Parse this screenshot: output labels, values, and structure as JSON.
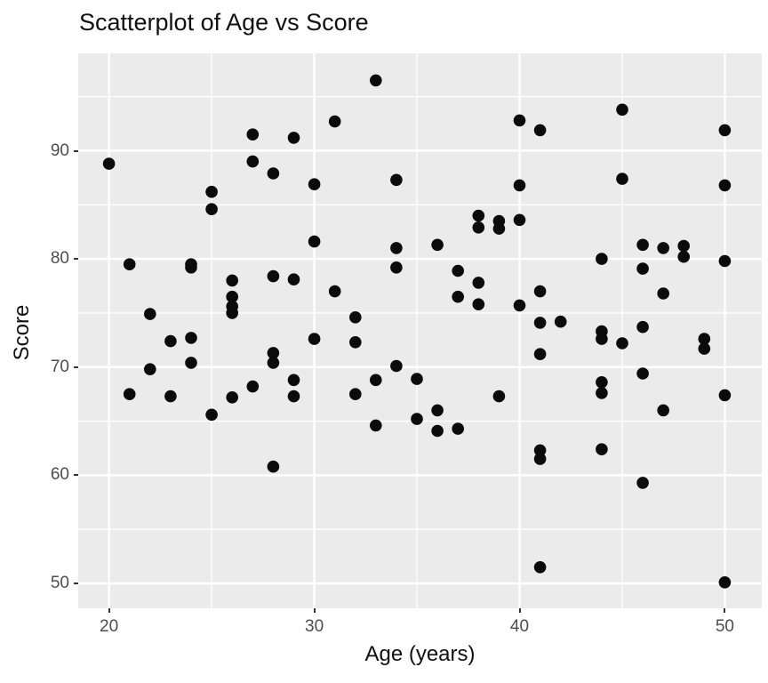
{
  "chart_data": {
    "type": "scatter",
    "title": "Scatterplot of Age vs Score",
    "xlabel": "Age (years)",
    "ylabel": "Score",
    "xlim": [
      18.5,
      51.8
    ],
    "ylim": [
      47.7,
      99.0
    ],
    "xticks": [
      20,
      30,
      40,
      50
    ],
    "yticks": [
      50,
      60,
      70,
      80,
      90
    ],
    "x_minor_gridlines": [
      25,
      35,
      45
    ],
    "y_minor_gridlines": [
      55,
      65,
      75,
      85,
      95
    ],
    "grid": "on",
    "legend_position": "none",
    "panel_bg": "#EBEBEB",
    "grid_color": "#FFFFFF",
    "point_color": "#0B0B0B",
    "tick_text_color": "#4D4D4D",
    "points": [
      [
        20,
        88.8
      ],
      [
        21,
        79.5
      ],
      [
        21,
        67.5
      ],
      [
        22,
        74.9
      ],
      [
        22,
        69.8
      ],
      [
        23,
        72.4
      ],
      [
        23,
        67.3
      ],
      [
        24,
        79.5
      ],
      [
        24,
        79.2
      ],
      [
        24,
        72.7
      ],
      [
        24,
        70.4
      ],
      [
        25,
        86.2
      ],
      [
        25,
        84.6
      ],
      [
        25,
        65.6
      ],
      [
        26,
        78.0
      ],
      [
        26,
        76.5
      ],
      [
        26,
        75.6
      ],
      [
        26,
        75.0
      ],
      [
        26,
        67.2
      ],
      [
        27,
        91.5
      ],
      [
        27,
        89.0
      ],
      [
        27,
        68.2
      ],
      [
        28,
        87.9
      ],
      [
        28,
        78.4
      ],
      [
        28,
        71.3
      ],
      [
        28,
        70.4
      ],
      [
        28,
        60.8
      ],
      [
        29,
        91.2
      ],
      [
        29,
        78.1
      ],
      [
        29,
        68.8
      ],
      [
        29,
        67.3
      ],
      [
        30,
        86.9
      ],
      [
        30,
        81.6
      ],
      [
        30,
        72.6
      ],
      [
        31,
        92.7
      ],
      [
        31,
        77.0
      ],
      [
        32,
        74.6
      ],
      [
        32,
        72.3
      ],
      [
        32,
        67.5
      ],
      [
        33,
        96.5
      ],
      [
        33,
        68.8
      ],
      [
        33,
        64.6
      ],
      [
        34,
        87.3
      ],
      [
        34,
        81.0
      ],
      [
        34,
        79.2
      ],
      [
        34,
        70.1
      ],
      [
        35,
        68.9
      ],
      [
        35,
        65.2
      ],
      [
        36,
        81.3
      ],
      [
        36,
        66.0
      ],
      [
        36,
        64.1
      ],
      [
        37,
        78.9
      ],
      [
        37,
        76.5
      ],
      [
        37,
        64.3
      ],
      [
        38,
        84.0
      ],
      [
        38,
        82.9
      ],
      [
        38,
        77.8
      ],
      [
        38,
        75.8
      ],
      [
        39,
        83.5
      ],
      [
        39,
        82.8
      ],
      [
        39,
        67.3
      ],
      [
        40,
        92.8
      ],
      [
        40,
        86.8
      ],
      [
        40,
        83.6
      ],
      [
        40,
        75.7
      ],
      [
        41,
        91.9
      ],
      [
        41,
        77.0
      ],
      [
        41,
        74.1
      ],
      [
        41,
        71.2
      ],
      [
        41,
        62.3
      ],
      [
        41,
        61.5
      ],
      [
        41,
        51.5
      ],
      [
        42,
        74.2
      ],
      [
        44,
        80.0
      ],
      [
        44,
        73.3
      ],
      [
        44,
        72.6
      ],
      [
        44,
        68.6
      ],
      [
        44,
        67.6
      ],
      [
        44,
        62.4
      ],
      [
        45,
        93.8
      ],
      [
        45,
        87.4
      ],
      [
        45,
        72.2
      ],
      [
        46,
        81.3
      ],
      [
        46,
        79.1
      ],
      [
        46,
        73.7
      ],
      [
        46,
        69.4
      ],
      [
        46,
        59.3
      ],
      [
        47,
        81.0
      ],
      [
        47,
        76.8
      ],
      [
        47,
        66.0
      ],
      [
        48,
        81.2
      ],
      [
        48,
        80.2
      ],
      [
        49,
        72.6
      ],
      [
        49,
        71.7
      ],
      [
        50,
        91.9
      ],
      [
        50,
        86.8
      ],
      [
        50,
        79.8
      ],
      [
        50,
        67.4
      ],
      [
        50,
        50.1
      ]
    ]
  }
}
